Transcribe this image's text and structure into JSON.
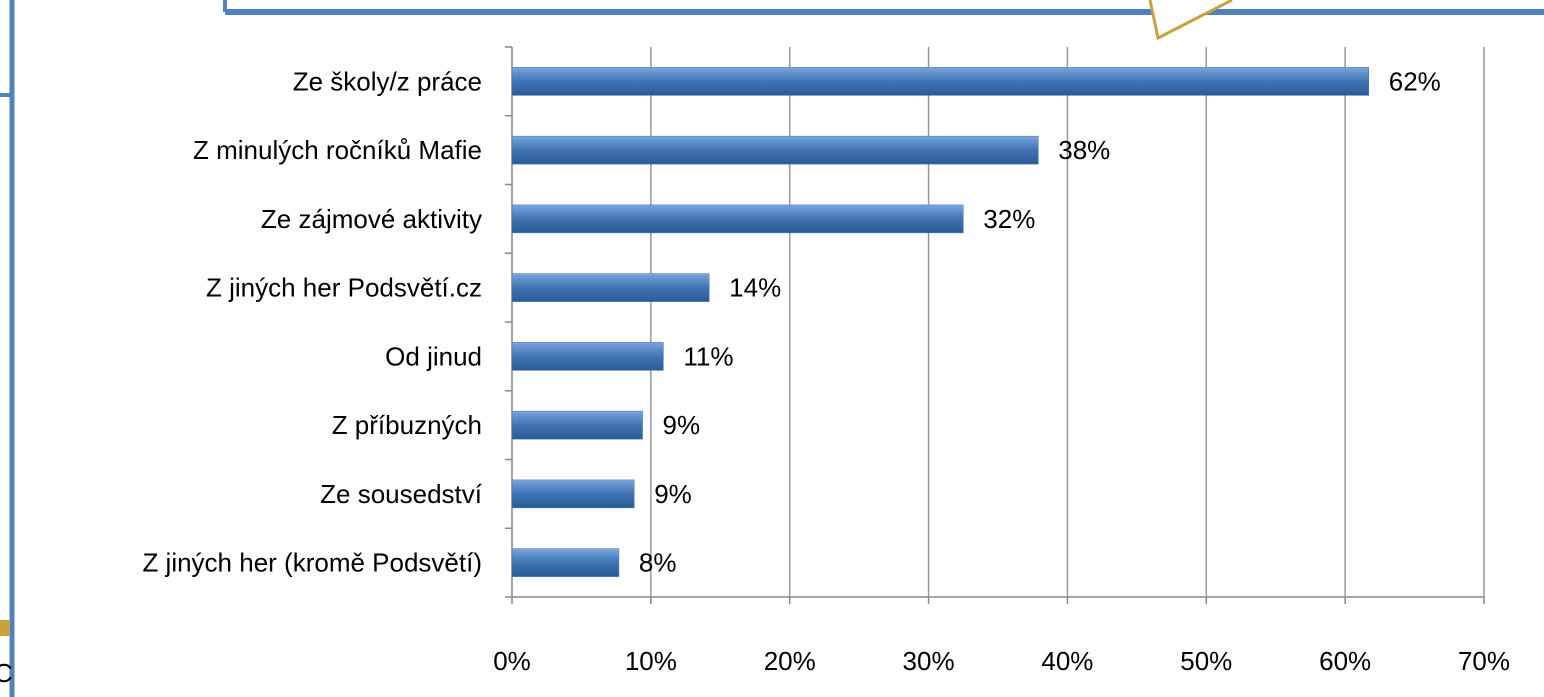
{
  "fragment": "C",
  "chart_data": {
    "type": "hbar",
    "categories": [
      "Ze školy/z práce",
      "Z minulých ročníků Mafie",
      "Ze zájmové aktivity",
      "Z jiných her Podsvětí.cz",
      "Od jinud",
      "Z příbuzných",
      "Ze sousedství",
      "Z jiných her (kromě Podsvětí)"
    ],
    "values": [
      61.7,
      37.9,
      32.5,
      14.2,
      10.9,
      9.4,
      8.8,
      7.7
    ],
    "value_labels": [
      "62%",
      "38%",
      "32%",
      "14%",
      "11%",
      "9%",
      "9%",
      "8%"
    ],
    "color": "#3f74b5",
    "xlim": [
      0,
      70
    ],
    "xticks": [
      {
        "value": 0,
        "label": "0%"
      },
      {
        "value": 10,
        "label": "10%"
      },
      {
        "value": 20,
        "label": "20%"
      },
      {
        "value": 30,
        "label": "30%"
      },
      {
        "value": 40,
        "label": "40%"
      },
      {
        "value": 50,
        "label": "50%"
      },
      {
        "value": 60,
        "label": "60%"
      },
      {
        "value": 70,
        "label": "70%"
      }
    ],
    "grid": true
  }
}
